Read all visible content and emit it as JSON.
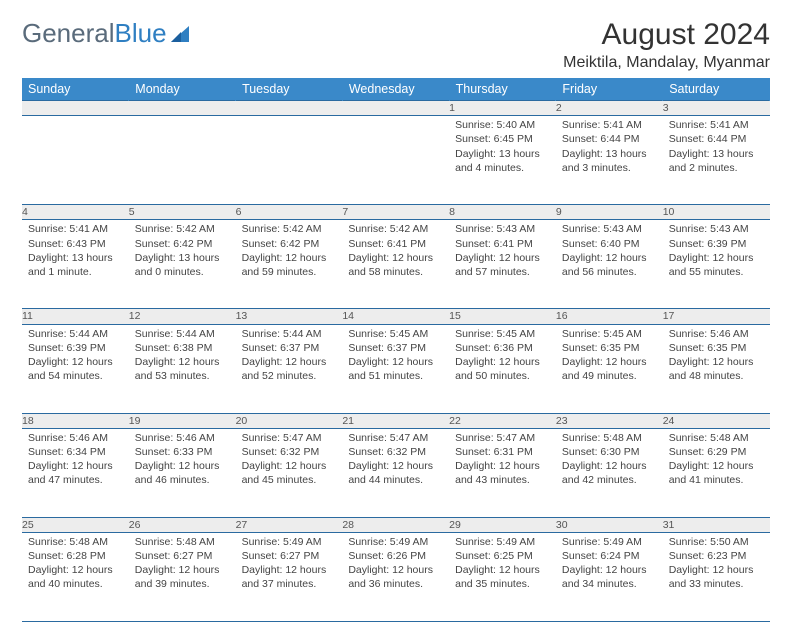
{
  "logo": {
    "text_a": "General",
    "text_b": "Blue"
  },
  "title": "August 2024",
  "location": "Meiktila, Mandalay, Myanmar",
  "colors": {
    "header_bg": "#3a89c9",
    "header_text": "#ffffff",
    "rule": "#2a6aa0",
    "daynum_bg": "#ededed",
    "logo_gray": "#5a6b7b",
    "logo_blue": "#2f7fc2"
  },
  "weekdays": [
    "Sunday",
    "Monday",
    "Tuesday",
    "Wednesday",
    "Thursday",
    "Friday",
    "Saturday"
  ],
  "weeks": [
    {
      "nums": [
        "",
        "",
        "",
        "",
        "1",
        "2",
        "3"
      ],
      "cells": [
        null,
        null,
        null,
        null,
        {
          "sunrise": "5:40 AM",
          "sunset": "6:45 PM",
          "daylight": "13 hours and 4 minutes."
        },
        {
          "sunrise": "5:41 AM",
          "sunset": "6:44 PM",
          "daylight": "13 hours and 3 minutes."
        },
        {
          "sunrise": "5:41 AM",
          "sunset": "6:44 PM",
          "daylight": "13 hours and 2 minutes."
        }
      ]
    },
    {
      "nums": [
        "4",
        "5",
        "6",
        "7",
        "8",
        "9",
        "10"
      ],
      "cells": [
        {
          "sunrise": "5:41 AM",
          "sunset": "6:43 PM",
          "daylight": "13 hours and 1 minute."
        },
        {
          "sunrise": "5:42 AM",
          "sunset": "6:42 PM",
          "daylight": "13 hours and 0 minutes."
        },
        {
          "sunrise": "5:42 AM",
          "sunset": "6:42 PM",
          "daylight": "12 hours and 59 minutes."
        },
        {
          "sunrise": "5:42 AM",
          "sunset": "6:41 PM",
          "daylight": "12 hours and 58 minutes."
        },
        {
          "sunrise": "5:43 AM",
          "sunset": "6:41 PM",
          "daylight": "12 hours and 57 minutes."
        },
        {
          "sunrise": "5:43 AM",
          "sunset": "6:40 PM",
          "daylight": "12 hours and 56 minutes."
        },
        {
          "sunrise": "5:43 AM",
          "sunset": "6:39 PM",
          "daylight": "12 hours and 55 minutes."
        }
      ]
    },
    {
      "nums": [
        "11",
        "12",
        "13",
        "14",
        "15",
        "16",
        "17"
      ],
      "cells": [
        {
          "sunrise": "5:44 AM",
          "sunset": "6:39 PM",
          "daylight": "12 hours and 54 minutes."
        },
        {
          "sunrise": "5:44 AM",
          "sunset": "6:38 PM",
          "daylight": "12 hours and 53 minutes."
        },
        {
          "sunrise": "5:44 AM",
          "sunset": "6:37 PM",
          "daylight": "12 hours and 52 minutes."
        },
        {
          "sunrise": "5:45 AM",
          "sunset": "6:37 PM",
          "daylight": "12 hours and 51 minutes."
        },
        {
          "sunrise": "5:45 AM",
          "sunset": "6:36 PM",
          "daylight": "12 hours and 50 minutes."
        },
        {
          "sunrise": "5:45 AM",
          "sunset": "6:35 PM",
          "daylight": "12 hours and 49 minutes."
        },
        {
          "sunrise": "5:46 AM",
          "sunset": "6:35 PM",
          "daylight": "12 hours and 48 minutes."
        }
      ]
    },
    {
      "nums": [
        "18",
        "19",
        "20",
        "21",
        "22",
        "23",
        "24"
      ],
      "cells": [
        {
          "sunrise": "5:46 AM",
          "sunset": "6:34 PM",
          "daylight": "12 hours and 47 minutes."
        },
        {
          "sunrise": "5:46 AM",
          "sunset": "6:33 PM",
          "daylight": "12 hours and 46 minutes."
        },
        {
          "sunrise": "5:47 AM",
          "sunset": "6:32 PM",
          "daylight": "12 hours and 45 minutes."
        },
        {
          "sunrise": "5:47 AM",
          "sunset": "6:32 PM",
          "daylight": "12 hours and 44 minutes."
        },
        {
          "sunrise": "5:47 AM",
          "sunset": "6:31 PM",
          "daylight": "12 hours and 43 minutes."
        },
        {
          "sunrise": "5:48 AM",
          "sunset": "6:30 PM",
          "daylight": "12 hours and 42 minutes."
        },
        {
          "sunrise": "5:48 AM",
          "sunset": "6:29 PM",
          "daylight": "12 hours and 41 minutes."
        }
      ]
    },
    {
      "nums": [
        "25",
        "26",
        "27",
        "28",
        "29",
        "30",
        "31"
      ],
      "cells": [
        {
          "sunrise": "5:48 AM",
          "sunset": "6:28 PM",
          "daylight": "12 hours and 40 minutes."
        },
        {
          "sunrise": "5:48 AM",
          "sunset": "6:27 PM",
          "daylight": "12 hours and 39 minutes."
        },
        {
          "sunrise": "5:49 AM",
          "sunset": "6:27 PM",
          "daylight": "12 hours and 37 minutes."
        },
        {
          "sunrise": "5:49 AM",
          "sunset": "6:26 PM",
          "daylight": "12 hours and 36 minutes."
        },
        {
          "sunrise": "5:49 AM",
          "sunset": "6:25 PM",
          "daylight": "12 hours and 35 minutes."
        },
        {
          "sunrise": "5:49 AM",
          "sunset": "6:24 PM",
          "daylight": "12 hours and 34 minutes."
        },
        {
          "sunrise": "5:50 AM",
          "sunset": "6:23 PM",
          "daylight": "12 hours and 33 minutes."
        }
      ]
    }
  ],
  "labels": {
    "sunrise": "Sunrise: ",
    "sunset": "Sunset: ",
    "daylight": "Daylight: "
  }
}
